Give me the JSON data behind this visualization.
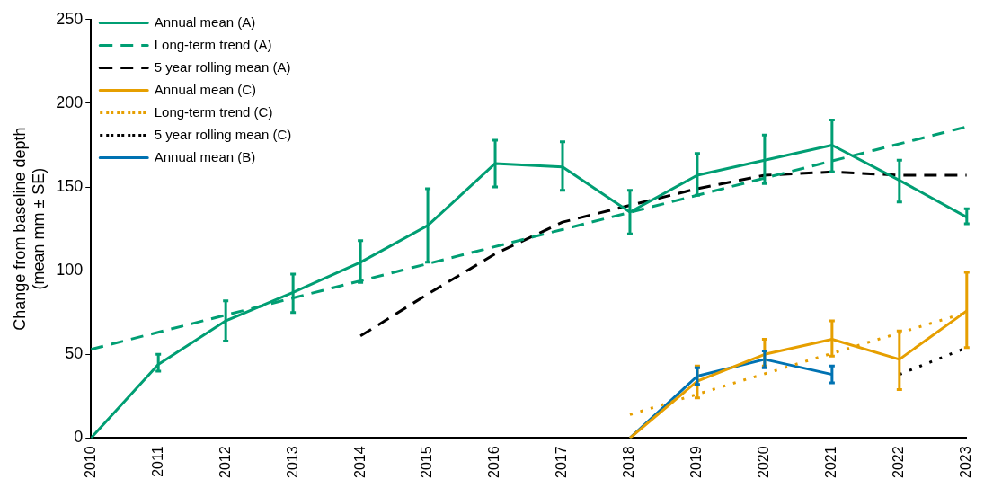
{
  "chart_data": {
    "type": "line",
    "ylabel": "Change from baseline depth\n(mean mm ± SE)",
    "xlim": [
      2010,
      2023
    ],
    "xticks": [
      2010,
      2011,
      2012,
      2013,
      2014,
      2015,
      2016,
      2017,
      2018,
      2019,
      2020,
      2021,
      2022,
      2023
    ],
    "ylim": [
      0,
      250
    ],
    "yticks": [
      0,
      50,
      100,
      150,
      200,
      250
    ],
    "grid": false,
    "legend": "top left",
    "marker": "none",
    "series": [
      {
        "name": "Annual mean (A)",
        "color": "#009e73",
        "line_style": "solid",
        "x": [
          2010,
          2011,
          2012,
          2013,
          2014,
          2015,
          2016,
          2017,
          2018,
          2019,
          2020,
          2021,
          2022,
          2023
        ],
        "values": [
          0,
          44,
          70,
          87,
          105,
          127,
          164,
          162,
          135,
          157,
          166,
          175,
          154,
          132
        ],
        "errors": [
          null,
          [
            40,
            50
          ],
          [
            58,
            82
          ],
          [
            75,
            98
          ],
          [
            93,
            118
          ],
          [
            105,
            149
          ],
          [
            150,
            178
          ],
          [
            148,
            177
          ],
          [
            122,
            148
          ],
          [
            145,
            170
          ],
          [
            152,
            181
          ],
          [
            159,
            190
          ],
          [
            141,
            166
          ],
          [
            128,
            137
          ]
        ]
      },
      {
        "name": "Long-term trend (A)",
        "color": "#009e73",
        "line_style": "dashed",
        "x": [
          2010,
          2023
        ],
        "values": [
          53,
          186
        ]
      },
      {
        "name": "5 year rolling mean (A)",
        "color": "#000000",
        "line_style": "dashed",
        "x": [
          2014,
          2015,
          2016,
          2017,
          2018,
          2019,
          2020,
          2021,
          2022,
          2023
        ],
        "values": [
          61,
          86,
          110,
          129,
          139,
          149,
          157,
          159,
          157,
          157
        ]
      },
      {
        "name": "Annual mean (C)",
        "color": "#e69f00",
        "line_style": "solid",
        "x": [
          2018,
          2019,
          2020,
          2021,
          2022,
          2023
        ],
        "values": [
          0,
          34,
          50,
          59,
          47,
          76
        ],
        "errors": [
          null,
          [
            24,
            43
          ],
          [
            43,
            59
          ],
          [
            49,
            70
          ],
          [
            29,
            64
          ],
          [
            54,
            99
          ]
        ]
      },
      {
        "name": "Long-term trend (C)",
        "color": "#e69f00",
        "line_style": "dotted",
        "x": [
          2018,
          2023
        ],
        "values": [
          14,
          75
        ]
      },
      {
        "name": "5 year rolling mean (C)",
        "color": "#000000",
        "line_style": "dotted",
        "x": [
          2022,
          2023
        ],
        "values": [
          38,
          54
        ]
      },
      {
        "name": "Annual mean (B)",
        "color": "#0072b2",
        "line_style": "solid",
        "x": [
          2018,
          2019,
          2020,
          2021
        ],
        "values": [
          0,
          37,
          47,
          38
        ],
        "errors": [
          null,
          [
            32,
            42
          ],
          [
            42,
            52
          ],
          [
            33,
            43
          ]
        ]
      }
    ]
  }
}
